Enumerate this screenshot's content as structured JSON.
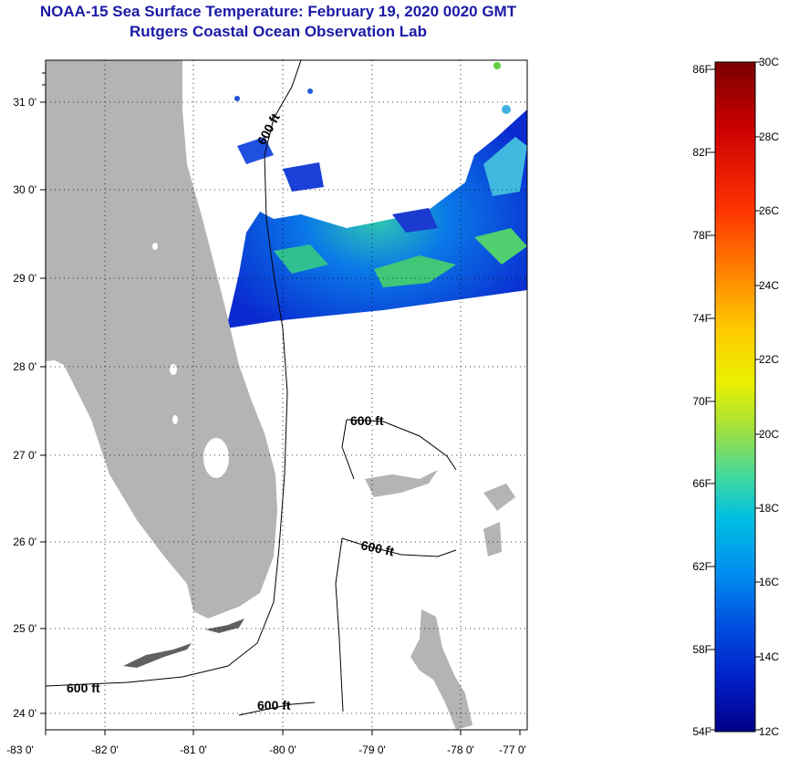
{
  "title": {
    "line1": "NOAA-15 Sea Surface Temperature:  February 19, 2020 0020 GMT",
    "line2": "Rutgers Coastal Ocean Observation Lab"
  },
  "map": {
    "lat_labels": [
      "31 0'",
      "30 0'",
      "29 0'",
      "28 0'",
      "27 0'",
      "26 0'",
      "25 0'",
      "24 0'"
    ],
    "lon_labels": [
      "-83 0'",
      "-82 0'",
      "-81 0'",
      "-80 0'",
      "-79 0'",
      "-78 0'",
      "-77 0'"
    ],
    "contour_labels": [
      "600 ft",
      "600 ft",
      "600 ft",
      "600 ft",
      "600 ft"
    ],
    "colors": {
      "land": "#b4b4b4",
      "frame": "#000000",
      "contour": "#000000"
    }
  },
  "colorbar": {
    "fahrenheit_labels": [
      "86F",
      "82F",
      "78F",
      "74F",
      "70F",
      "66F",
      "62F",
      "58F",
      "54F"
    ],
    "celsius_labels": [
      "30C",
      "28C",
      "26C",
      "24C",
      "22C",
      "20C",
      "18C",
      "16C",
      "14C",
      "12C"
    ],
    "colors_top_to_bottom": [
      "#7a0000",
      "#cc0000",
      "#ff3300",
      "#ff8800",
      "#ffcc00",
      "#e8f000",
      "#a0e040",
      "#40d8a0",
      "#00c0e0",
      "#0090f0",
      "#0050e0",
      "#0020c8",
      "#000088"
    ]
  }
}
